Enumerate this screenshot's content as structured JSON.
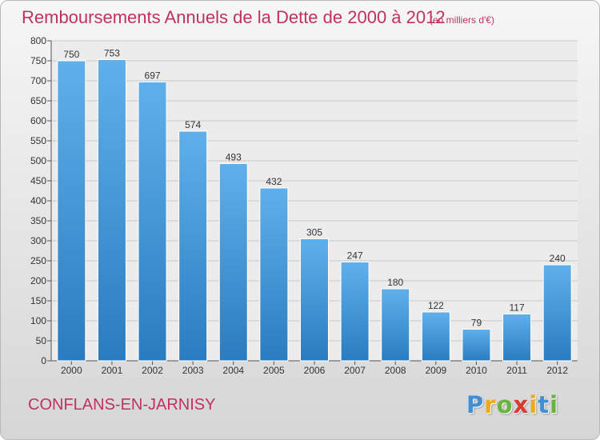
{
  "header": {
    "title": "Remboursements Annuels de la Dette de 2000 à 2012",
    "subtitle": "(en milliers d'€)"
  },
  "footer": {
    "town": "CONFLANS-EN-JARNISY",
    "logo": {
      "letters": [
        "P",
        "r",
        "o",
        "x",
        "i",
        "t",
        "i"
      ],
      "colors": [
        "#3f8fd6",
        "#f0a81c",
        "#68b43c",
        "#d9392f",
        "#f0a81c",
        "#3f8fd6",
        "#68b43c"
      ]
    }
  },
  "colors": {
    "title": "#c0325d",
    "bar_light": "#5fb0ea",
    "bar_dark": "#2a7cc0"
  },
  "chart_data": {
    "type": "bar",
    "categories": [
      "2000",
      "2001",
      "2002",
      "2003",
      "2004",
      "2005",
      "2006",
      "2007",
      "2008",
      "2009",
      "2010",
      "2011",
      "2012"
    ],
    "values": [
      750,
      753,
      697,
      574,
      493,
      432,
      305,
      247,
      180,
      122,
      79,
      117,
      240
    ],
    "data_labels": [
      "750",
      "753",
      "697",
      "574",
      "493",
      "432",
      "305",
      "247",
      "180",
      "122",
      "79",
      "117",
      "240"
    ],
    "yticks": [
      0,
      50,
      100,
      150,
      200,
      250,
      300,
      350,
      400,
      450,
      500,
      550,
      600,
      650,
      700,
      750,
      800
    ],
    "ylim": [
      0,
      800
    ],
    "grid": true,
    "legend": false
  }
}
